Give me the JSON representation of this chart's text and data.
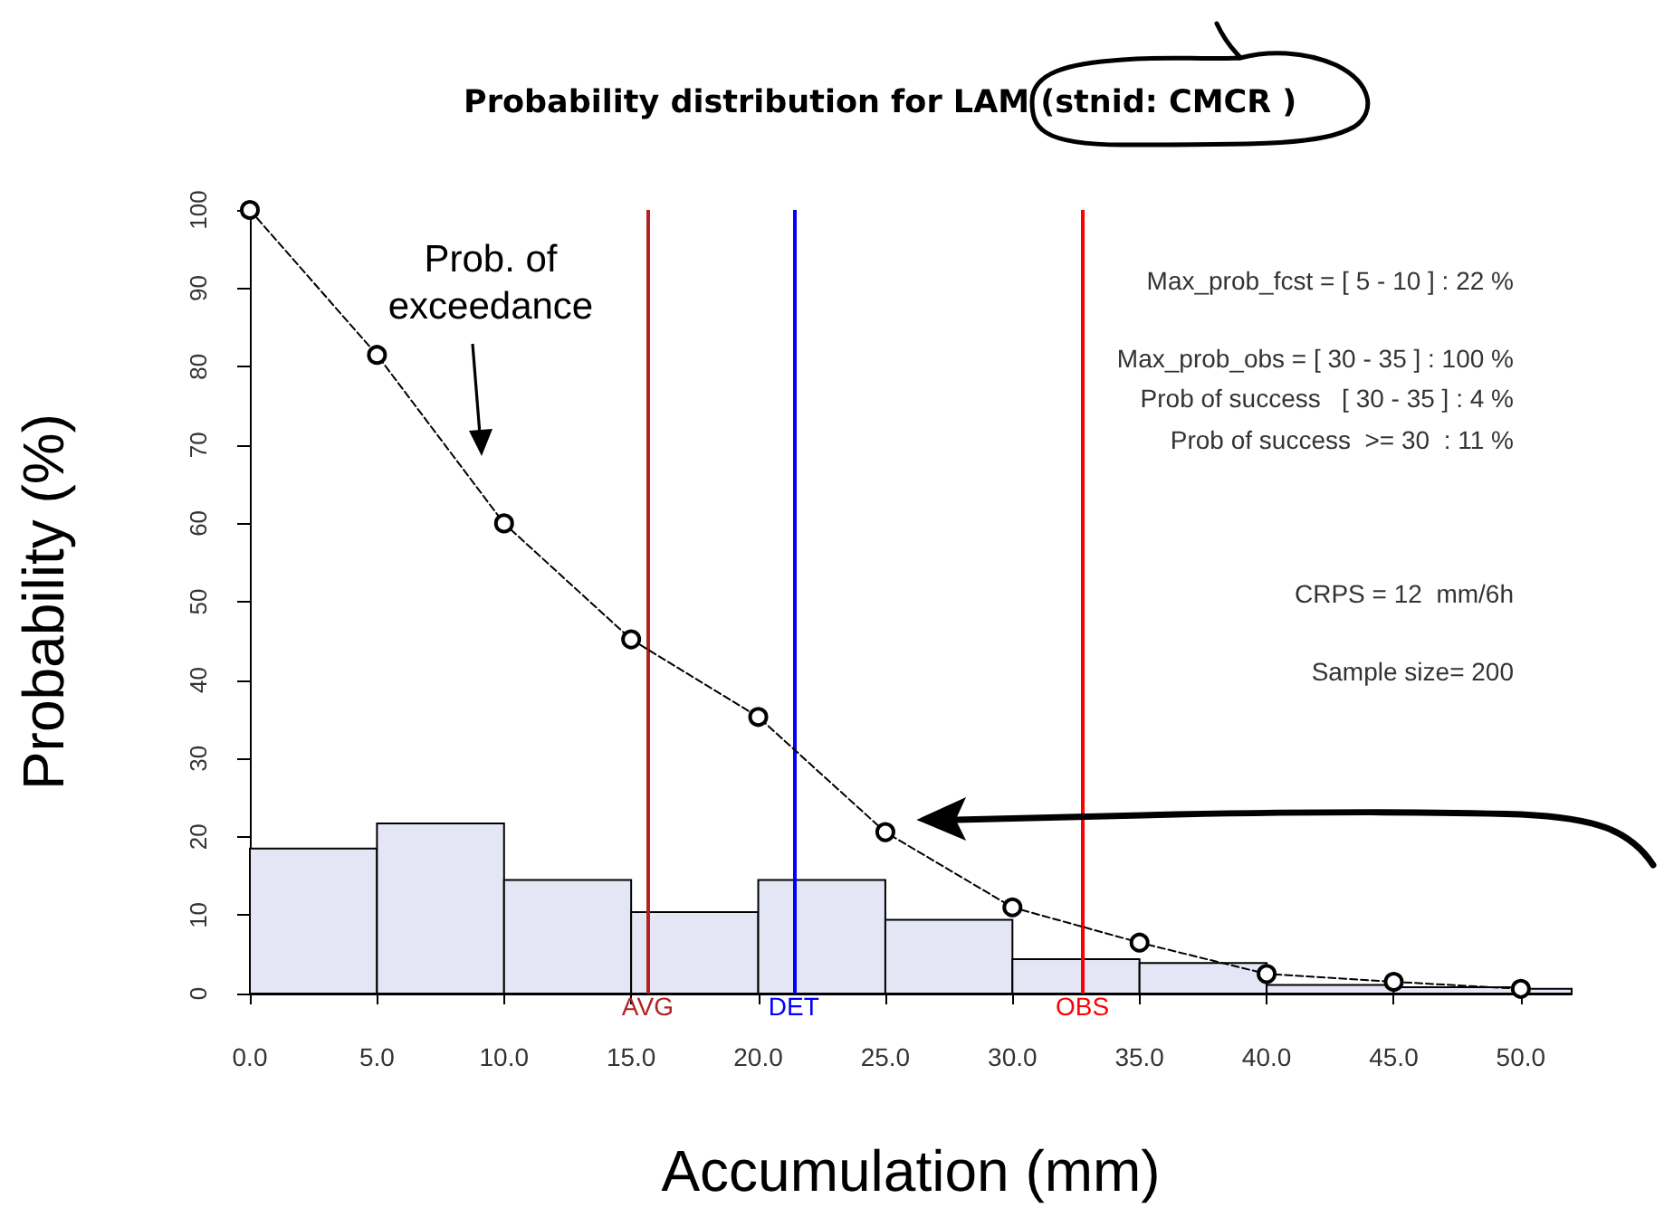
{
  "chart_data": {
    "type": "histogram",
    "title": "Probability distribution for LAM (stnid: CMCR )",
    "xlabel": "Accumulation (mm)",
    "ylabel": "Probability (%)",
    "bins": [
      0,
      5,
      10,
      15,
      20,
      25,
      30,
      35,
      40,
      45,
      50,
      52
    ],
    "values": [
      18.5,
      21.7,
      14.5,
      10.4,
      14.5,
      9.4,
      4.4,
      3.9,
      1.1,
      0.8,
      0.6
    ],
    "color": "#e4e6f6",
    "series": [
      {
        "type": "line",
        "color": "#000000",
        "x": [
          0,
          5,
          10,
          15,
          20,
          25,
          30,
          35,
          40,
          45,
          50
        ],
        "values": [
          100,
          81.5,
          60,
          45.2,
          35.3,
          20.6,
          11,
          6.5,
          2.5,
          1.5,
          0.6
        ],
        "marker": "circle",
        "line_style": "dashed"
      }
    ],
    "xlim": [
      0,
      52
    ],
    "xticks": [
      {
        "value": 0,
        "label": "0.0"
      },
      {
        "value": 5,
        "label": "5.0"
      },
      {
        "value": 10,
        "label": "10.0"
      },
      {
        "value": 15,
        "label": "15.0"
      },
      {
        "value": 20,
        "label": "20.0"
      },
      {
        "value": 25,
        "label": "25.0"
      },
      {
        "value": 30,
        "label": "30.0"
      },
      {
        "value": 35,
        "label": "35.0"
      },
      {
        "value": 40,
        "label": "40.0"
      },
      {
        "value": 45,
        "label": "45.0"
      },
      {
        "value": 50,
        "label": "50.0"
      }
    ],
    "ylim": [
      0,
      100
    ],
    "yticks": [
      0,
      10,
      20,
      30,
      40,
      50,
      60,
      70,
      80,
      90,
      100
    ],
    "ref_lines": [
      {
        "axis": "x",
        "value": 15.65,
        "label": "AVG",
        "color": "#b22222"
      },
      {
        "axis": "x",
        "value": 21.4,
        "label": "DET",
        "color": "#0000ff"
      },
      {
        "axis": "x",
        "value": 32.75,
        "label": "OBS",
        "color": "#ff0000"
      }
    ],
    "annotations": [
      "Prob. of exceedance",
      "Max_prob_fcst = [ 5 - 10 ] : 22 %",
      "Max_prob_obs = [ 30 - 35 ] : 100 %",
      "Prob of success   [ 30 - 35 ] : 4 %",
      "Prob of success  >= 30  : 11 %",
      "CRPS = 12  mm/6h",
      "Sample size= 200"
    ],
    "grid": false
  }
}
